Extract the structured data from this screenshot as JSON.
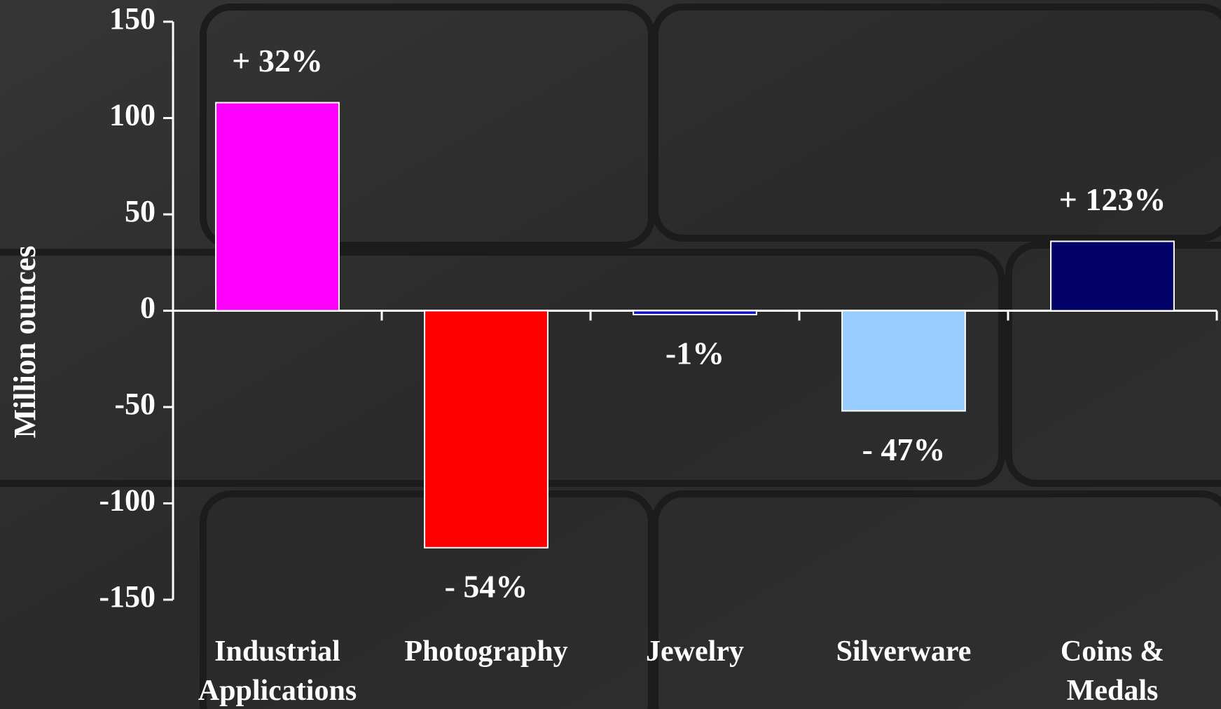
{
  "chart_data": {
    "type": "bar",
    "y_label": "Million ounces",
    "categories": [
      "Industrial\nApplications",
      "Photography",
      "Jewelry",
      "Silverware",
      "Coins &\nMedals"
    ],
    "values": [
      108,
      -123,
      -2,
      -52,
      36
    ],
    "colors": [
      "#ff00ff",
      "#ff0000",
      "#1010c8",
      "#99ccff",
      "#000066"
    ],
    "change_labels": [
      "+ 32%",
      "- 54%",
      "-1%",
      "- 47%",
      "+ 123%"
    ],
    "ylim": [
      -150,
      150
    ],
    "yticks": [
      -150,
      -100,
      -50,
      0,
      50,
      100,
      150
    ],
    "grid": false
  }
}
